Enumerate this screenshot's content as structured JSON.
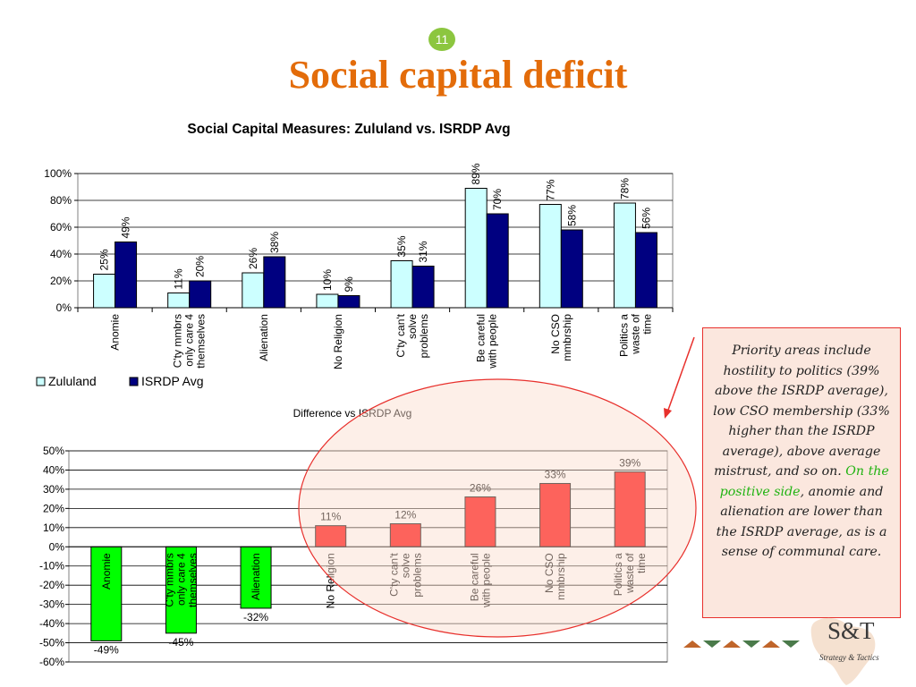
{
  "slide": {
    "number": "11",
    "title": "Social capital deficit"
  },
  "note": {
    "text_before": "Priority areas include hostility to politics (39% above the ISRDP average), low CSO membership (33% higher than the ISRDP average), above average mistrust, and so on.",
    "text_highlight": "On the positive side",
    "text_after": ", anomie and alienation are lower than the ISRDP average, as is a sense of communal care."
  },
  "logo": {
    "letters": "S&T",
    "tagline": "Strategy & Tactics"
  },
  "colors": {
    "title": "#e36c0a",
    "zululand": "#ccffff",
    "isrdp": "#000080",
    "diff_negative": "#00ff00",
    "diff_positive": "#ff0000",
    "callout": "#e8302c"
  },
  "chart_data": [
    {
      "type": "bar",
      "title": "Social Capital Measures: Zululand  vs. ISRDP Avg",
      "categories": [
        [
          "Anomie"
        ],
        [
          "C'ty mmbrs",
          "only care 4",
          "themselves"
        ],
        [
          "Alienation"
        ],
        [
          "No Religion"
        ],
        [
          "C'ty can't",
          "solve",
          "problems"
        ],
        [
          "Be careful",
          "with people"
        ],
        [
          "No CSO",
          "mmbrship"
        ],
        [
          "Politics a",
          "waste of",
          "time"
        ]
      ],
      "series": [
        {
          "name": "Zululand",
          "values": [
            25,
            11,
            26,
            10,
            35,
            89,
            77,
            78
          ],
          "color": "#ccffff"
        },
        {
          "name": "ISRDP  Avg",
          "values": [
            49,
            20,
            38,
            9,
            31,
            70,
            58,
            56
          ],
          "color": "#000080"
        }
      ],
      "ylim": [
        0,
        100
      ],
      "yticks": [
        "0%",
        "20%",
        "40%",
        "60%",
        "80%",
        "100%"
      ],
      "grid": true,
      "legend": "bottom-left"
    },
    {
      "type": "bar",
      "title": "Difference vs ISRDP Avg",
      "categories": [
        [
          "Anomie"
        ],
        [
          "C'ty mmbrs",
          "only care 4",
          "themselves"
        ],
        [
          "Alienation"
        ],
        [
          "No Religion"
        ],
        [
          "C'ty can't",
          "solve",
          "problems"
        ],
        [
          "Be careful",
          "with people"
        ],
        [
          "No CSO",
          "mmbrship"
        ],
        [
          "Politics a",
          "waste of",
          "time"
        ]
      ],
      "values": [
        -49,
        -45,
        -32,
        11,
        12,
        26,
        33,
        39
      ],
      "ylim": [
        -60,
        50
      ],
      "yticks": [
        "-60%",
        "-50%",
        "-40%",
        "-30%",
        "-20%",
        "-10%",
        "0%",
        "10%",
        "20%",
        "30%",
        "40%",
        "50%"
      ],
      "grid": true
    }
  ]
}
